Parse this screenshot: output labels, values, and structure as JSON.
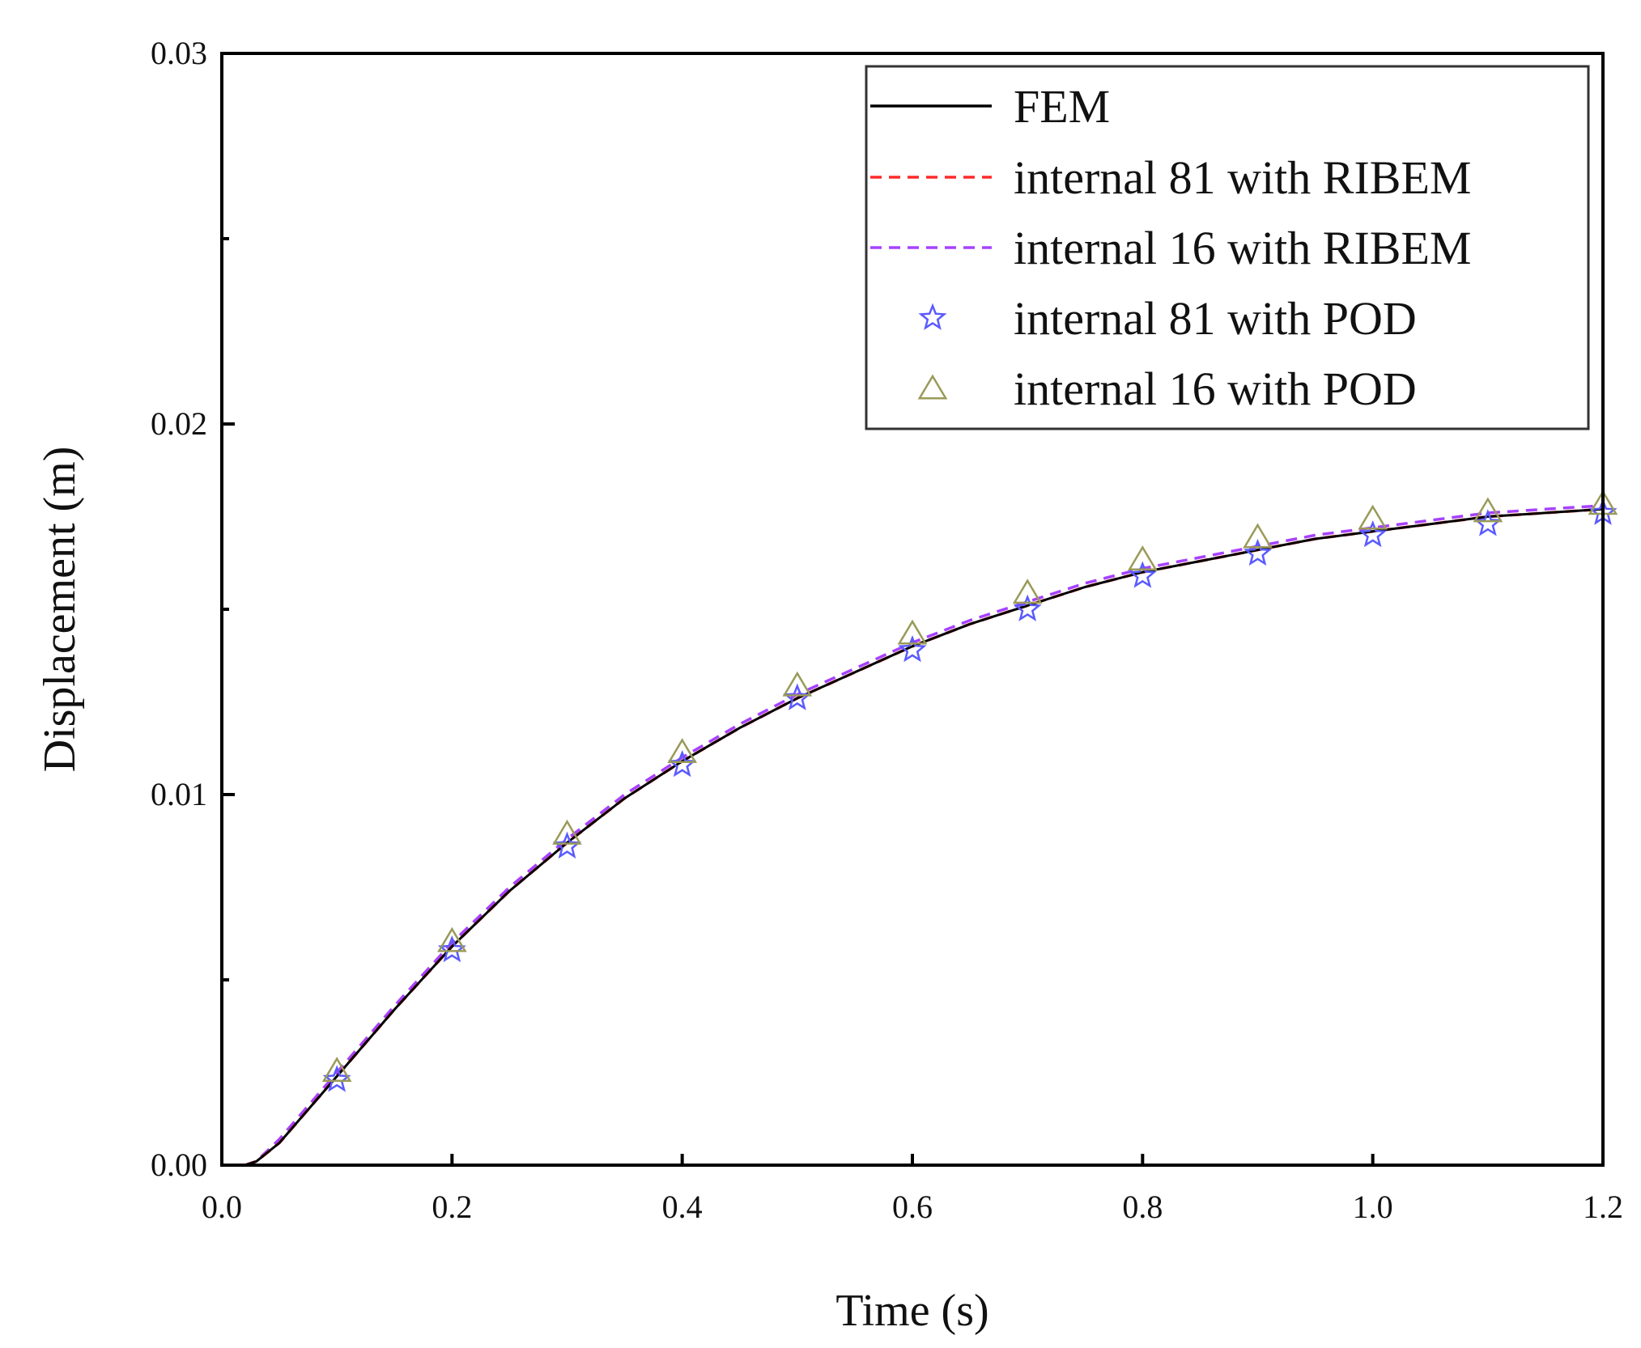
{
  "chart_data": {
    "type": "line",
    "title": "",
    "xlabel": "Time (s)",
    "ylabel": "Displacement (m)",
    "xlim": [
      0.0,
      1.2
    ],
    "ylim": [
      0.0,
      0.03
    ],
    "x_ticks": [
      "0.0",
      "0.2",
      "0.4",
      "0.6",
      "0.8",
      "1.0",
      "1.2"
    ],
    "x_tick_values": [
      0.0,
      0.2,
      0.4,
      0.6,
      0.8,
      1.0,
      1.2
    ],
    "y_ticks": [
      "0.00",
      "0.01",
      "0.02",
      "0.03"
    ],
    "y_tick_values": [
      0.0,
      0.01,
      0.02,
      0.03
    ],
    "y_minor_tick_values": [
      0.005,
      0.015,
      0.025
    ],
    "grid": false,
    "legend_position": "top-right",
    "series": [
      {
        "name": "FEM",
        "style": "solid-line",
        "color": "#000000",
        "x": [
          0.02,
          0.03,
          0.05,
          0.1,
          0.15,
          0.2,
          0.25,
          0.3,
          0.35,
          0.4,
          0.45,
          0.5,
          0.55,
          0.6,
          0.65,
          0.7,
          0.75,
          0.8,
          0.85,
          0.9,
          0.95,
          1.0,
          1.05,
          1.1,
          1.15,
          1.2
        ],
        "y": [
          0.0,
          0.0001,
          0.0006,
          0.0024,
          0.0042,
          0.0059,
          0.0074,
          0.0087,
          0.0099,
          0.0109,
          0.0118,
          0.0126,
          0.0133,
          0.014,
          0.0146,
          0.0151,
          0.0156,
          0.016,
          0.0163,
          0.0166,
          0.0169,
          0.0171,
          0.0173,
          0.0175,
          0.0176,
          0.0177
        ]
      },
      {
        "name": "internal 81 with RIBEM",
        "style": "dashed-line",
        "color": "#ff2a2a",
        "x": [
          0.02,
          0.03,
          0.05,
          0.1,
          0.15,
          0.2,
          0.25,
          0.3,
          0.35,
          0.4,
          0.45,
          0.5,
          0.55,
          0.6,
          0.65,
          0.7,
          0.75,
          0.8,
          0.85,
          0.9,
          0.95,
          1.0,
          1.05,
          1.1,
          1.15,
          1.2
        ],
        "y": [
          0.0,
          0.0001,
          0.0006,
          0.0024,
          0.0042,
          0.0059,
          0.0074,
          0.0087,
          0.0099,
          0.0109,
          0.0118,
          0.0126,
          0.0133,
          0.014,
          0.0146,
          0.0151,
          0.0156,
          0.016,
          0.0163,
          0.0166,
          0.0169,
          0.0171,
          0.0173,
          0.0175,
          0.0176,
          0.0177
        ]
      },
      {
        "name": "internal 16 with RIBEM",
        "style": "dashed-line",
        "color": "#a642ff",
        "x": [
          0.02,
          0.03,
          0.05,
          0.1,
          0.15,
          0.2,
          0.25,
          0.3,
          0.35,
          0.4,
          0.45,
          0.5,
          0.55,
          0.6,
          0.65,
          0.7,
          0.75,
          0.8,
          0.85,
          0.9,
          0.95,
          1.0,
          1.05,
          1.1,
          1.15,
          1.2
        ],
        "y": [
          0.0,
          0.0001,
          0.0007,
          0.0025,
          0.0043,
          0.006,
          0.0075,
          0.0088,
          0.01,
          0.011,
          0.0119,
          0.0127,
          0.0134,
          0.0141,
          0.0147,
          0.0152,
          0.0157,
          0.0161,
          0.0164,
          0.0167,
          0.017,
          0.0172,
          0.0174,
          0.0176,
          0.0177,
          0.0178
        ]
      },
      {
        "name": "internal 81 with POD",
        "style": "star-marker",
        "color": "#5a5aff",
        "x": [
          0.1,
          0.2,
          0.3,
          0.4,
          0.5,
          0.6,
          0.7,
          0.8,
          0.9,
          1.0,
          1.1,
          1.2
        ],
        "y": [
          0.0023,
          0.0058,
          0.0086,
          0.0108,
          0.0126,
          0.0139,
          0.015,
          0.0159,
          0.0165,
          0.017,
          0.0173,
          0.0176
        ]
      },
      {
        "name": "internal 16 with POD",
        "style": "triangle-marker",
        "color": "#9a9a5a",
        "x": [
          0.1,
          0.2,
          0.3,
          0.4,
          0.5,
          0.6,
          0.7,
          0.8,
          0.9,
          1.0,
          1.1,
          1.2
        ],
        "y": [
          0.0025,
          0.006,
          0.0089,
          0.0111,
          0.0129,
          0.0143,
          0.0154,
          0.0163,
          0.0169,
          0.0174,
          0.0176,
          0.0178
        ]
      }
    ]
  }
}
